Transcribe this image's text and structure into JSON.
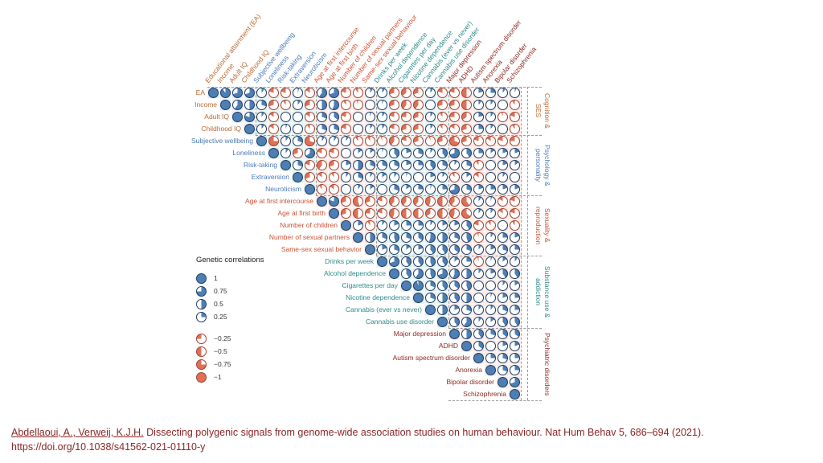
{
  "slide": {
    "citation_authors": "Abdellaoui, A., Verweij, K.J.H.",
    "citation_rest": " Dissecting polygenic signals from genome-wide association studies on human behaviour. Nat Hum Behav 5, 686–694 (2021).",
    "citation_doi": "https://doi.org/10.1038/s41562-021-01110-y",
    "citation_color": "#8b2525"
  },
  "legend": {
    "title": "Genetic correlations",
    "positive": [
      {
        "value": 1,
        "label": "1"
      },
      {
        "value": 0.75,
        "label": "0.75"
      },
      {
        "value": 0.5,
        "label": "0.5"
      },
      {
        "value": 0.25,
        "label": "0.25"
      }
    ],
    "negative": [
      {
        "value": -0.25,
        "label": "−0.25"
      },
      {
        "value": -0.5,
        "label": "−0.5"
      },
      {
        "value": -0.75,
        "label": "−0.75"
      },
      {
        "value": -1,
        "label": "−1"
      }
    ]
  },
  "chart_data": {
    "type": "heatmap",
    "subtype": "upper-triangle genetic correlation matrix with pie glyphs (blue = positive, red = negative)",
    "row_labels": [
      "EA",
      "Income",
      "Adult IQ",
      "Childhood IQ",
      "Subjective wellbeing",
      "Loneliness",
      "Risk-taking",
      "Extraversion",
      "Neuroticism",
      "Age at first intercourse",
      "Age at first birth",
      "Number of children",
      "Number of sexual partners",
      "Same-sex sexual behavior",
      "Drinks per week",
      "Alcohol dependence",
      "Cigarettes per day",
      "Nicotine dependence",
      "Cannabis (ever vs never)",
      "Cannabis use disorder",
      "Major depression",
      "ADHD",
      "Autism spectrum disorder",
      "Anorexia",
      "Bipolar disorder",
      "Schizophrenia"
    ],
    "col_labels": [
      "Educational attainment (EA)",
      "Income",
      "Adult IQ",
      "Childhood IQ",
      "Subjective wellbeing",
      "Loneliness",
      "Risk-taking",
      "Extraversion",
      "Neuroticism",
      "Age at first intercourse",
      "Age at first birth",
      "Number of children",
      "Number of sexual partners",
      "Same-sex sexual behaviour",
      "Drinks per week",
      "Alcohol dependence",
      "Cigarettes per day",
      "Nicotine dependence",
      "Cannabis (ever vs never)",
      "Cannabis use disorder",
      "Major depression",
      "ADHD",
      "Autism spectrum disorder",
      "Anorexia",
      "Bipolar disorder",
      "Schizophrenia"
    ],
    "categories": [
      {
        "name": "Cognition & SES",
        "start": 0,
        "end": 3,
        "color": "#b96a33",
        "tint": "#e8edf5"
      },
      {
        "name": "Psychology & personality",
        "start": 4,
        "end": 8,
        "color": "#4a7ab5",
        "tint": "#e1f0ee"
      },
      {
        "name": "Sexuality & reproduction",
        "start": 9,
        "end": 13,
        "color": "#cc5233",
        "tint": "#fae7e2"
      },
      {
        "name": "Substance use & addiction",
        "start": 14,
        "end": 19,
        "color": "#2e8b8a",
        "tint": "#e1f0ee"
      },
      {
        "name": "Psychiatric disorders",
        "start": 20,
        "end": 25,
        "color": "#8d2a22",
        "tint": "#fae7e2"
      }
    ],
    "positive_color": "#4d7fb5",
    "positive_border": "#1e3c63",
    "negative_color": "#dd7158",
    "negative_border": "#a8402f",
    "diagonal_value": 1,
    "values_note": "approximate values estimated visually from pie fill",
    "upper_triangle": [
      [
        0.9,
        0.7,
        0.7,
        0.1,
        -0.2,
        -0.2,
        0.05,
        -0.15,
        0.6,
        0.7,
        -0.2,
        -0.1,
        0.1,
        0.1,
        -0.3,
        -0.35,
        -0.3,
        0.1,
        -0.2,
        -0.2,
        -0.5,
        0.2,
        0.25,
        0.1,
        0.05
      ],
      [
        0.6,
        0.5,
        0.3,
        -0.3,
        -0.1,
        0.1,
        -0.3,
        0.5,
        0.55,
        -0.1,
        -0.05,
        0,
        0.05,
        -0.3,
        -0.4,
        -0.4,
        0,
        -0.3,
        -0.3,
        -0.5,
        0.1,
        0.1,
        0,
        -0.1
      ],
      [
        0.8,
        0.1,
        -0.15,
        0,
        0,
        -0.15,
        0.3,
        0.35,
        -0.2,
        0,
        0.05,
        0.1,
        -0.2,
        -0.25,
        -0.3,
        0.1,
        -0.1,
        -0.25,
        -0.35,
        0.2,
        0.1,
        -0.05,
        -0.2
      ],
      [
        0.1,
        -0.15,
        0.05,
        0,
        -0.1,
        0.3,
        0.3,
        -0.2,
        0,
        0.1,
        0.1,
        -0.2,
        -0.3,
        -0.3,
        0.1,
        -0.1,
        -0.15,
        -0.3,
        0.25,
        0.1,
        0,
        -0.1
      ],
      [
        -0.75,
        0.1,
        0.3,
        -0.7,
        0.1,
        0.1,
        0.1,
        -0.1,
        -0.1,
        -0.05,
        -0.4,
        -0.2,
        -0.3,
        -0.05,
        -0.3,
        -0.7,
        -0.3,
        -0.2,
        -0.15,
        -0.2,
        -0.25
      ],
      [
        0.1,
        -0.3,
        0.65,
        -0.2,
        -0.2,
        0,
        0.15,
        0.15,
        0.05,
        0.4,
        0.2,
        0.3,
        0.1,
        0.4,
        0.7,
        0.4,
        0.25,
        0.15,
        0.2,
        0.2
      ],
      [
        0.3,
        -0.2,
        -0.4,
        -0.3,
        0.2,
        0.5,
        0.3,
        0.3,
        0.3,
        0.2,
        0.25,
        0.4,
        0.3,
        0.1,
        0.3,
        -0.1,
        0,
        0.2,
        0.15
      ],
      [
        -0.3,
        -0.15,
        -0.1,
        0.1,
        0.3,
        0.1,
        0.15,
        0.1,
        0.05,
        0,
        0.2,
        0.1,
        -0.1,
        0.15,
        -0.15,
        0,
        0.1,
        0
      ],
      [
        -0.1,
        -0.15,
        0,
        0.1,
        0.15,
        0,
        0.3,
        0.15,
        0.25,
        0.05,
        0.25,
        0.7,
        0.3,
        0.2,
        0.25,
        0.2,
        0.2
      ],
      [
        0.8,
        -0.3,
        -0.55,
        -0.3,
        -0.2,
        -0.4,
        -0.4,
        -0.4,
        -0.45,
        -0.5,
        -0.4,
        -0.6,
        0.1,
        0.05,
        -0.15,
        -0.2
      ],
      [
        -0.3,
        -0.5,
        -0.25,
        -0.2,
        -0.45,
        -0.5,
        -0.5,
        -0.35,
        -0.5,
        -0.45,
        -0.65,
        0.1,
        0.1,
        -0.15,
        -0.2
      ],
      [
        0.2,
        -0.1,
        0.1,
        0.2,
        0.25,
        0.25,
        0.1,
        0.2,
        0.2,
        0.4,
        -0.2,
        -0.1,
        0,
        -0.1
      ],
      [
        0.5,
        0.3,
        0.45,
        0.3,
        0.35,
        0.55,
        0.5,
        0.3,
        0.45,
        -0.05,
        0.1,
        0.25,
        0.2
      ],
      [
        0.2,
        0.3,
        0.15,
        0.2,
        0.4,
        0.4,
        0.35,
        0.3,
        0.1,
        0.2,
        0.3,
        0.25
      ],
      [
        0.7,
        0.4,
        0.4,
        0.45,
        0.4,
        0.15,
        0.25,
        -0.05,
        0.05,
        0.15,
        0.1
      ],
      [
        0.4,
        0.6,
        0.45,
        0.7,
        0.55,
        0.5,
        0.1,
        0.2,
        0.4,
        0.4
      ],
      [
        0.95,
        0.3,
        0.4,
        0.35,
        0.45,
        0,
        0,
        0.1,
        0.15
      ],
      [
        0.3,
        0.5,
        0.4,
        0.5,
        0,
        0.05,
        0.2,
        0.25
      ],
      [
        0.5,
        0.2,
        0.3,
        0.1,
        0.1,
        0.3,
        0.25
      ],
      [
        0.4,
        0.6,
        0.1,
        0.15,
        0.4,
        0.4
      ],
      [
        0.5,
        0.4,
        0.3,
        0.35,
        0.35
      ],
      [
        0.35,
        0,
        0.2,
        0.2
      ],
      [
        0.25,
        0.3,
        0.25
      ],
      [
        0.3,
        0.25
      ],
      [
        0.7
      ],
      []
    ]
  }
}
